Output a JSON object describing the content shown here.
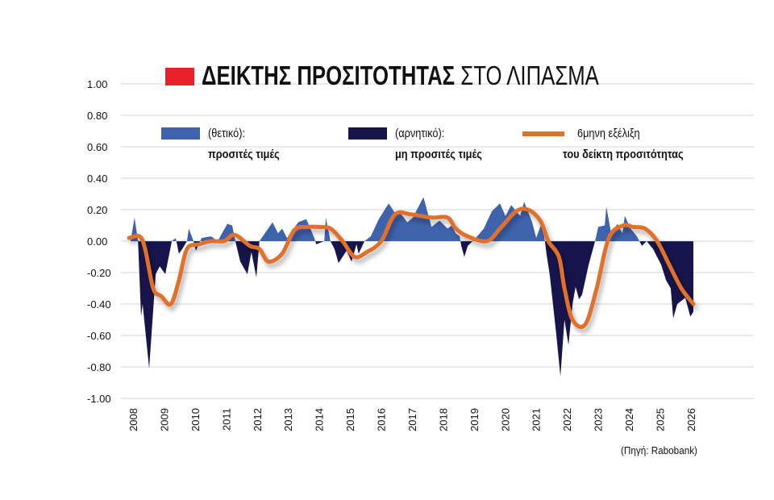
{
  "title": {
    "bold": "ΔΕΙΚΤΗΣ ΠΡΟΣΙΤΟΤΗΤΑΣ",
    "regular": "ΣΤΟ ΛΙΠΑΣΜΑ",
    "marker_color": "#e52228"
  },
  "legend": [
    {
      "line1": "(θετικό):",
      "line2": "προσιτές τιμές",
      "color": "#3f62ad",
      "kind": "area"
    },
    {
      "line1": "(αρνητικό):",
      "line2": "μη προσιτές τιμές",
      "color": "#16144a",
      "kind": "area"
    },
    {
      "line1": "6μηνη εξέλιξη",
      "line2": "του δείκτη προσιτότητας",
      "color": "#e0702a",
      "kind": "line"
    }
  ],
  "source": "(Πηγή: Rabobank)",
  "chart_data": {
    "type": "area",
    "title": "ΔΕΙΚΤΗΣ ΠΡΟΣΙΤΟΤΗΤΑΣ ΣΤΟ ΛΙΠΑΣΜΑ",
    "ylim": [
      -1.0,
      1.0
    ],
    "xlim": [
      2007.9,
      2026.5
    ],
    "yticks": [
      "1.00",
      "0.80",
      "0.60",
      "0.40",
      "0.20",
      "0.00",
      "-0.20",
      "-0.40",
      "-0.60",
      "-0.80",
      "-1.00"
    ],
    "ytick_values": [
      1,
      0.8,
      0.6,
      0.4,
      0.2,
      0,
      -0.2,
      -0.4,
      -0.6,
      -0.8,
      -1
    ],
    "xticks": [
      "2008",
      "2009",
      "2010",
      "2011",
      "2012",
      "2013",
      "2014",
      "2015",
      "2016",
      "2017",
      "2018",
      "2019",
      "2020",
      "2021",
      "2022",
      "2023",
      "2024",
      "2025",
      "2026"
    ],
    "grid": true,
    "legend_position": "top",
    "series": [
      {
        "name": "προσιτές τιμές / μη προσιτές τιμές",
        "kind": "area",
        "x": [
          2007.92,
          2008.05,
          2008.16,
          2008.26,
          2008.31,
          2008.52,
          2008.73,
          2008.86,
          2009.04,
          2009.25,
          2009.38,
          2009.48,
          2009.59,
          2009.74,
          2009.8,
          2009.95,
          2010.03,
          2010.21,
          2010.52,
          2010.73,
          2011.04,
          2011.2,
          2011.3,
          2011.46,
          2011.69,
          2011.82,
          2011.98,
          2012.08,
          2012.5,
          2012.68,
          2012.81,
          2012.97,
          2013.33,
          2013.59,
          2013.85,
          2013.91,
          2014.17,
          2014.22,
          2014.37,
          2014.5,
          2014.63,
          2014.89,
          2015.05,
          2015.21,
          2015.28,
          2015.47,
          2015.67,
          2015.93,
          2016.25,
          2016.45,
          2016.58,
          2016.85,
          2017.03,
          2017.37,
          2017.63,
          2017.89,
          2018.15,
          2018.28,
          2018.41,
          2018.54,
          2018.59,
          2018.69,
          2018.8,
          2019.06,
          2019.32,
          2019.58,
          2019.84,
          2020.02,
          2020.2,
          2020.49,
          2020.62,
          2020.88,
          2021.01,
          2021.19,
          2021.29,
          2021.34,
          2021.45,
          2021.66,
          2021.79,
          2021.92,
          2022.05,
          2022.18,
          2022.28,
          2022.39,
          2022.49,
          2022.7,
          2022.91,
          2023.01,
          2023.22,
          2023.27,
          2023.43,
          2023.63,
          2023.79,
          2023.87,
          2024.05,
          2024.26,
          2024.42,
          2024.57,
          2024.78,
          2025.04,
          2025.2,
          2025.35,
          2025.43,
          2025.56,
          2025.82,
          2025.98,
          2026.08
        ],
        "y": [
          0.0,
          0.15,
          0.0,
          -0.48,
          -0.4,
          -0.81,
          -0.21,
          -0.16,
          -0.21,
          0.0,
          0.02,
          -0.08,
          -0.05,
          0.0,
          0.08,
          0.0,
          -0.06,
          0.02,
          0.03,
          0.0,
          0.11,
          0.1,
          0.0,
          -0.13,
          -0.21,
          -0.07,
          -0.23,
          0.0,
          0.12,
          0.05,
          0.08,
          0.02,
          0.12,
          0.14,
          0.02,
          -0.02,
          0.0,
          0.15,
          0.0,
          -0.05,
          -0.14,
          -0.06,
          -0.13,
          -0.02,
          -0.08,
          0.0,
          0.03,
          0.14,
          0.24,
          0.18,
          0.19,
          0.12,
          0.15,
          0.28,
          0.09,
          0.13,
          0.08,
          0.1,
          0.05,
          0.03,
          -0.03,
          -0.1,
          -0.03,
          0.02,
          0.08,
          0.19,
          0.24,
          0.16,
          0.23,
          0.16,
          0.25,
          0.12,
          0.02,
          0.12,
          0.0,
          -0.08,
          -0.22,
          -0.6,
          -0.86,
          -0.5,
          -0.66,
          -0.4,
          -0.29,
          -0.37,
          -0.34,
          -0.15,
          0.0,
          0.09,
          0.1,
          0.22,
          0.05,
          0.11,
          0.05,
          0.16,
          0.08,
          0.03,
          -0.03,
          0.0,
          -0.05,
          -0.15,
          -0.25,
          -0.3,
          -0.49,
          -0.4,
          -0.36,
          -0.48,
          -0.45
        ]
      },
      {
        "name": "6μηνη εξέλιξη του δείκτη προσιτότητας",
        "kind": "line",
        "x": [
          2007.87,
          2008.21,
          2008.39,
          2008.65,
          2008.91,
          2009.22,
          2009.48,
          2009.74,
          2010.13,
          2010.52,
          2010.94,
          2011.28,
          2011.77,
          2012.08,
          2012.37,
          2012.81,
          2013.2,
          2013.59,
          2013.98,
          2014.37,
          2014.76,
          2015.15,
          2015.54,
          2016.01,
          2016.45,
          2016.98,
          2017.63,
          2018.15,
          2018.41,
          2018.8,
          2019.42,
          2019.84,
          2020.36,
          2020.75,
          2021.14,
          2021.4,
          2021.74,
          2021.92,
          2022.18,
          2022.59,
          2022.96,
          2023.35,
          2023.82,
          2024.13,
          2024.52,
          2024.91,
          2025.3,
          2025.69,
          2026.08
        ],
        "y": [
          0.02,
          0.03,
          -0.05,
          -0.3,
          -0.35,
          -0.4,
          -0.25,
          -0.05,
          -0.02,
          0.0,
          0.0,
          0.04,
          -0.03,
          -0.05,
          -0.13,
          -0.08,
          0.07,
          0.09,
          0.09,
          0.08,
          0.0,
          -0.1,
          -0.07,
          0.0,
          0.17,
          0.17,
          0.15,
          0.15,
          0.08,
          0.03,
          0.0,
          0.08,
          0.19,
          0.2,
          0.13,
          0.0,
          -0.1,
          -0.3,
          -0.5,
          -0.53,
          -0.3,
          0.02,
          0.1,
          0.09,
          0.08,
          0.0,
          -0.15,
          -0.3,
          -0.4
        ]
      }
    ]
  }
}
